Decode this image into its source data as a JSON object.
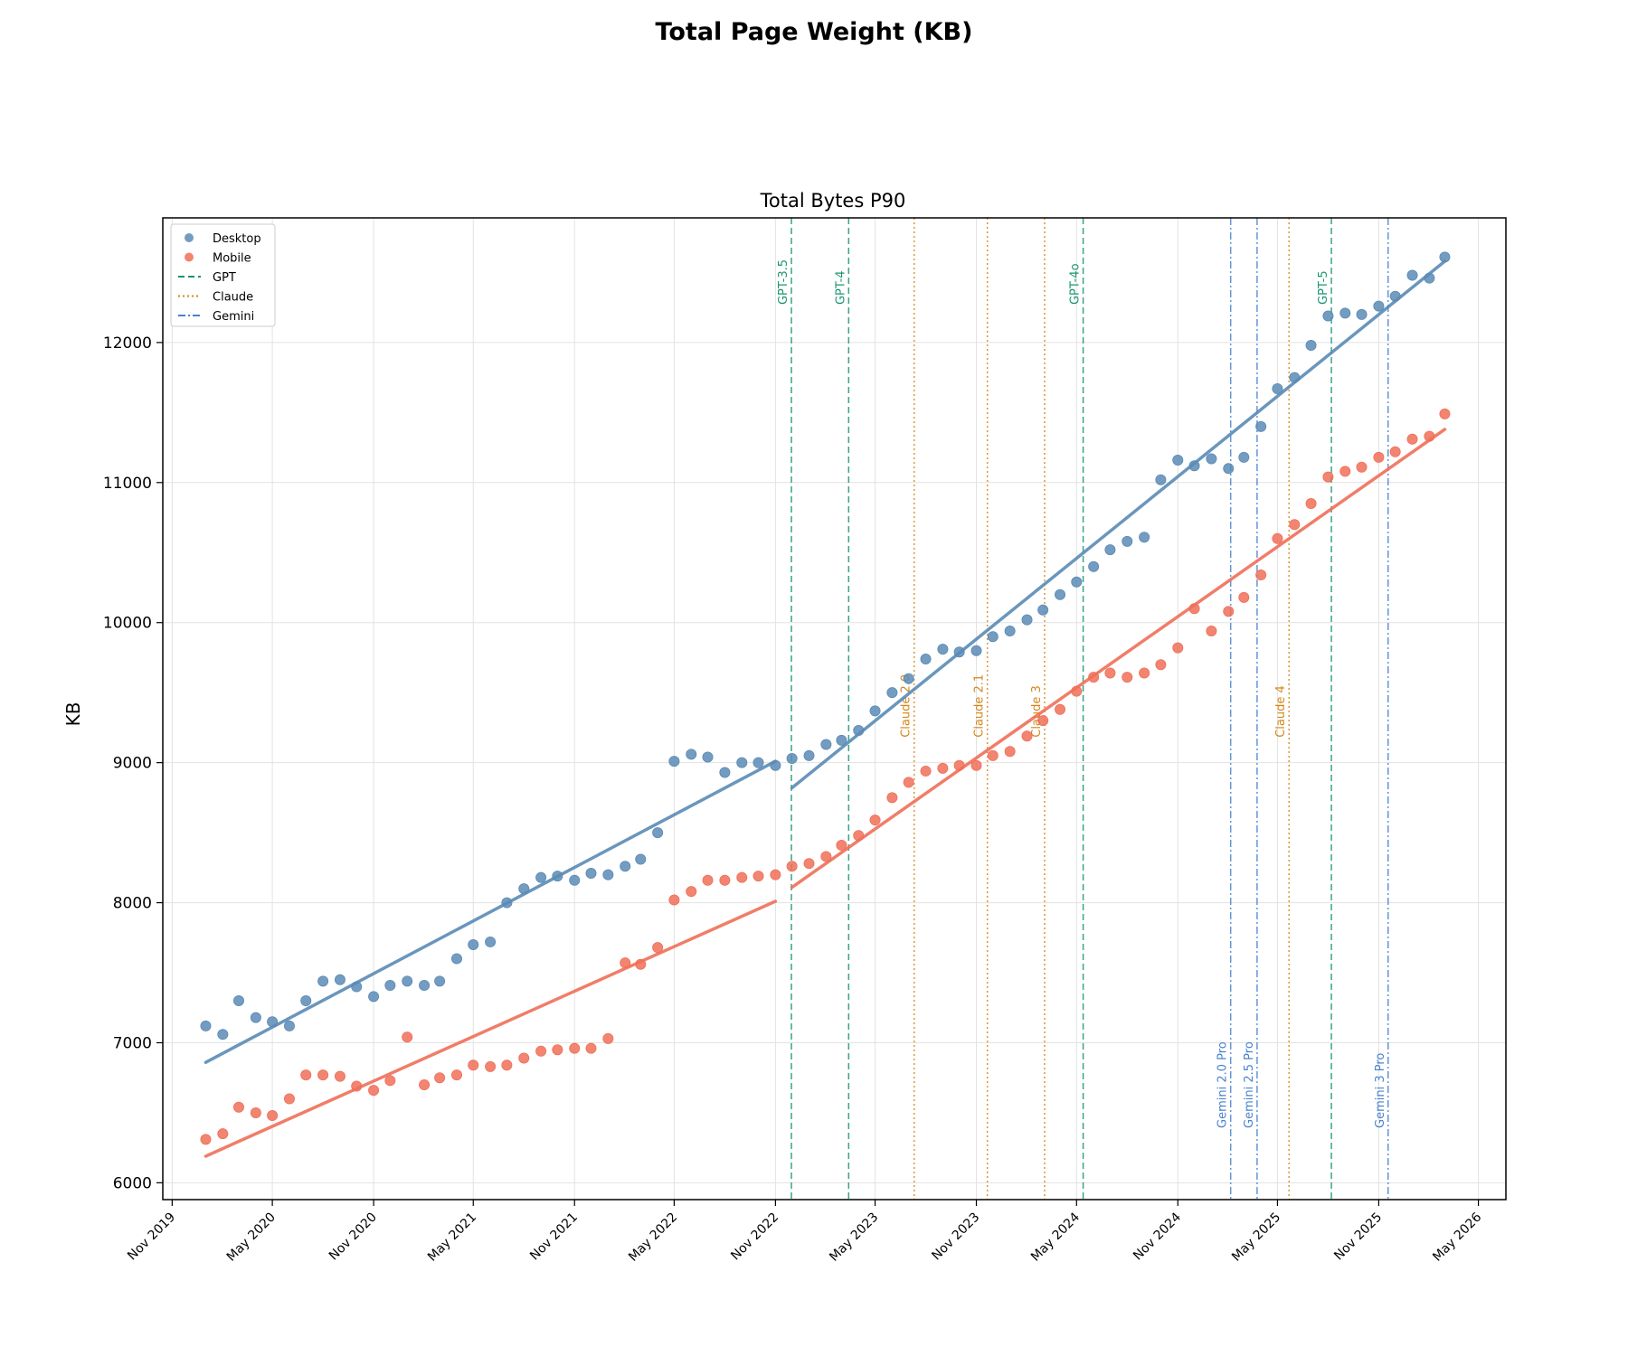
{
  "figure_title": "Total Page Weight (KB)",
  "colors": {
    "desktop": "#5a8bb5",
    "mobile": "#f07058",
    "gpt": "#1a9470",
    "claude": "#d4861a",
    "gemini": "#4a82d0",
    "grid": "#e2e2e2"
  },
  "chart_data": {
    "type": "scatter",
    "title": "Total Bytes P90",
    "xlabel": "",
    "ylabel": "KB",
    "xlim": [
      "2019-10-15",
      "2026-06-20"
    ],
    "ylim": [
      5880,
      12890
    ],
    "grid": true,
    "legend_position": "upper-left",
    "x_ticks": [
      "Nov 2019",
      "May 2020",
      "Nov 2020",
      "May 2021",
      "Nov 2021",
      "May 2022",
      "Nov 2022",
      "May 2023",
      "Nov 2023",
      "May 2024",
      "Nov 2024",
      "May 2025",
      "Nov 2025",
      "May 2026"
    ],
    "y_ticks": [
      6000,
      7000,
      8000,
      9000,
      10000,
      11000,
      12000
    ],
    "legend": [
      "Desktop",
      "Mobile",
      "GPT",
      "Claude",
      "Gemini"
    ],
    "series": [
      {
        "name": "Desktop",
        "points": [
          [
            "2020-01-01",
            7120
          ],
          [
            "2020-02-01",
            7060
          ],
          [
            "2020-03-01",
            7300
          ],
          [
            "2020-04-01",
            7180
          ],
          [
            "2020-05-01",
            7150
          ],
          [
            "2020-06-01",
            7120
          ],
          [
            "2020-07-01",
            7300
          ],
          [
            "2020-08-01",
            7440
          ],
          [
            "2020-09-01",
            7450
          ],
          [
            "2020-10-01",
            7400
          ],
          [
            "2020-11-01",
            7330
          ],
          [
            "2020-12-01",
            7410
          ],
          [
            "2021-01-01",
            7440
          ],
          [
            "2021-02-01",
            7410
          ],
          [
            "2021-03-01",
            7440
          ],
          [
            "2021-04-01",
            7600
          ],
          [
            "2021-05-01",
            7700
          ],
          [
            "2021-06-01",
            7720
          ],
          [
            "2021-07-01",
            8000
          ],
          [
            "2021-08-01",
            8100
          ],
          [
            "2021-09-01",
            8180
          ],
          [
            "2021-10-01",
            8190
          ],
          [
            "2021-11-01",
            8160
          ],
          [
            "2021-12-01",
            8210
          ],
          [
            "2022-01-01",
            8200
          ],
          [
            "2022-02-01",
            8260
          ],
          [
            "2022-03-01",
            8310
          ],
          [
            "2022-04-01",
            8500
          ],
          [
            "2022-05-01",
            9010
          ],
          [
            "2022-06-01",
            9060
          ],
          [
            "2022-07-01",
            9040
          ],
          [
            "2022-08-01",
            8930
          ],
          [
            "2022-09-01",
            9000
          ],
          [
            "2022-10-01",
            9000
          ],
          [
            "2022-11-01",
            8980
          ],
          [
            "2022-12-01",
            9030
          ],
          [
            "2023-01-01",
            9050
          ],
          [
            "2023-02-01",
            9130
          ],
          [
            "2023-03-01",
            9160
          ],
          [
            "2023-04-01",
            9230
          ],
          [
            "2023-05-01",
            9370
          ],
          [
            "2023-06-01",
            9500
          ],
          [
            "2023-07-01",
            9600
          ],
          [
            "2023-08-01",
            9740
          ],
          [
            "2023-09-01",
            9810
          ],
          [
            "2023-10-01",
            9790
          ],
          [
            "2023-11-01",
            9800
          ],
          [
            "2023-12-01",
            9900
          ],
          [
            "2024-01-01",
            9940
          ],
          [
            "2024-02-01",
            10020
          ],
          [
            "2024-03-01",
            10090
          ],
          [
            "2024-04-01",
            10200
          ],
          [
            "2024-05-01",
            10290
          ],
          [
            "2024-06-01",
            10400
          ],
          [
            "2024-07-01",
            10520
          ],
          [
            "2024-08-01",
            10580
          ],
          [
            "2024-09-01",
            10610
          ],
          [
            "2024-10-01",
            11020
          ],
          [
            "2024-11-01",
            11160
          ],
          [
            "2024-12-01",
            11120
          ],
          [
            "2025-01-01",
            11170
          ],
          [
            "2025-02-01",
            11100
          ],
          [
            "2025-03-01",
            11180
          ],
          [
            "2025-04-01",
            11400
          ],
          [
            "2025-05-01",
            11670
          ],
          [
            "2025-06-01",
            11750
          ],
          [
            "2025-07-01",
            11980
          ],
          [
            "2025-08-01",
            12190
          ],
          [
            "2025-09-01",
            12210
          ],
          [
            "2025-10-01",
            12200
          ],
          [
            "2025-11-01",
            12260
          ],
          [
            "2025-12-01",
            12330
          ],
          [
            "2026-01-01",
            12480
          ],
          [
            "2026-02-01",
            12460
          ],
          [
            "2026-03-01",
            12610
          ]
        ],
        "trend_segments": [
          [
            [
              "2020-01-01",
              6860
            ],
            [
              "2022-11-01",
              9010
            ]
          ],
          [
            [
              "2022-12-01",
              8820
            ],
            [
              "2026-03-01",
              12580
            ]
          ]
        ]
      },
      {
        "name": "Mobile",
        "points": [
          [
            "2020-01-01",
            6310
          ],
          [
            "2020-02-01",
            6350
          ],
          [
            "2020-03-01",
            6540
          ],
          [
            "2020-04-01",
            6500
          ],
          [
            "2020-05-01",
            6480
          ],
          [
            "2020-06-01",
            6600
          ],
          [
            "2020-07-01",
            6770
          ],
          [
            "2020-08-01",
            6770
          ],
          [
            "2020-09-01",
            6760
          ],
          [
            "2020-10-01",
            6690
          ],
          [
            "2020-11-01",
            6660
          ],
          [
            "2020-12-01",
            6730
          ],
          [
            "2021-01-01",
            7040
          ],
          [
            "2021-02-01",
            6700
          ],
          [
            "2021-03-01",
            6750
          ],
          [
            "2021-04-01",
            6770
          ],
          [
            "2021-05-01",
            6840
          ],
          [
            "2021-06-01",
            6830
          ],
          [
            "2021-07-01",
            6840
          ],
          [
            "2021-08-01",
            6890
          ],
          [
            "2021-09-01",
            6940
          ],
          [
            "2021-10-01",
            6950
          ],
          [
            "2021-11-01",
            6960
          ],
          [
            "2021-12-01",
            6960
          ],
          [
            "2022-01-01",
            7030
          ],
          [
            "2022-02-01",
            7570
          ],
          [
            "2022-03-01",
            7560
          ],
          [
            "2022-04-01",
            7680
          ],
          [
            "2022-05-01",
            8020
          ],
          [
            "2022-06-01",
            8080
          ],
          [
            "2022-07-01",
            8160
          ],
          [
            "2022-08-01",
            8160
          ],
          [
            "2022-09-01",
            8180
          ],
          [
            "2022-10-01",
            8190
          ],
          [
            "2022-11-01",
            8200
          ],
          [
            "2022-12-01",
            8260
          ],
          [
            "2023-01-01",
            8280
          ],
          [
            "2023-02-01",
            8330
          ],
          [
            "2023-03-01",
            8410
          ],
          [
            "2023-04-01",
            8480
          ],
          [
            "2023-05-01",
            8590
          ],
          [
            "2023-06-01",
            8750
          ],
          [
            "2023-07-01",
            8860
          ],
          [
            "2023-08-01",
            8940
          ],
          [
            "2023-09-01",
            8960
          ],
          [
            "2023-10-01",
            8980
          ],
          [
            "2023-11-01",
            8980
          ],
          [
            "2023-12-01",
            9050
          ],
          [
            "2024-01-01",
            9080
          ],
          [
            "2024-02-01",
            9190
          ],
          [
            "2024-03-01",
            9300
          ],
          [
            "2024-04-01",
            9380
          ],
          [
            "2024-05-01",
            9510
          ],
          [
            "2024-06-01",
            9610
          ],
          [
            "2024-07-01",
            9640
          ],
          [
            "2024-08-01",
            9610
          ],
          [
            "2024-09-01",
            9640
          ],
          [
            "2024-10-01",
            9700
          ],
          [
            "2024-11-01",
            9820
          ],
          [
            "2024-12-01",
            10100
          ],
          [
            "2025-01-01",
            9940
          ],
          [
            "2025-02-01",
            10080
          ],
          [
            "2025-03-01",
            10180
          ],
          [
            "2025-04-01",
            10340
          ],
          [
            "2025-05-01",
            10600
          ],
          [
            "2025-06-01",
            10700
          ],
          [
            "2025-07-01",
            10850
          ],
          [
            "2025-08-01",
            11040
          ],
          [
            "2025-09-01",
            11080
          ],
          [
            "2025-10-01",
            11110
          ],
          [
            "2025-11-01",
            11180
          ],
          [
            "2025-12-01",
            11220
          ],
          [
            "2026-01-01",
            11310
          ],
          [
            "2026-02-01",
            11330
          ],
          [
            "2026-03-01",
            11490
          ]
        ],
        "trend_segments": [
          [
            [
              "2020-01-01",
              6190
            ],
            [
              "2022-11-01",
              8010
            ]
          ],
          [
            [
              "2022-12-01",
              8110
            ],
            [
              "2026-03-01",
              11380
            ]
          ]
        ]
      }
    ],
    "events": [
      {
        "group": "GPT",
        "label": "GPT-3.5",
        "date": "2022-11-30",
        "style": "dashed"
      },
      {
        "group": "GPT",
        "label": "GPT-4",
        "date": "2023-03-14",
        "style": "dashed"
      },
      {
        "group": "GPT",
        "label": "GPT-4o",
        "date": "2024-05-13",
        "style": "dashed"
      },
      {
        "group": "GPT",
        "label": "GPT-5",
        "date": "2025-08-07",
        "style": "dashed"
      },
      {
        "group": "Claude",
        "label": "Claude 2.0",
        "date": "2023-07-11",
        "style": "dotted"
      },
      {
        "group": "Claude",
        "label": "Claude 2.1",
        "date": "2023-11-21",
        "style": "dotted"
      },
      {
        "group": "Claude",
        "label": "Claude 3",
        "date": "2024-03-04",
        "style": "dotted"
      },
      {
        "group": "Claude",
        "label": "Claude 4",
        "date": "2025-05-22",
        "style": "dotted"
      },
      {
        "group": "Gemini",
        "label": "Gemini 2.0 Pro",
        "date": "2025-02-05",
        "style": "dashdot"
      },
      {
        "group": "Gemini",
        "label": "Gemini 2.5 Pro",
        "date": "2025-03-25",
        "style": "dashdot"
      },
      {
        "group": "Gemini",
        "label": "Gemini 3 Pro",
        "date": "2025-11-18",
        "style": "dashdot"
      }
    ]
  }
}
